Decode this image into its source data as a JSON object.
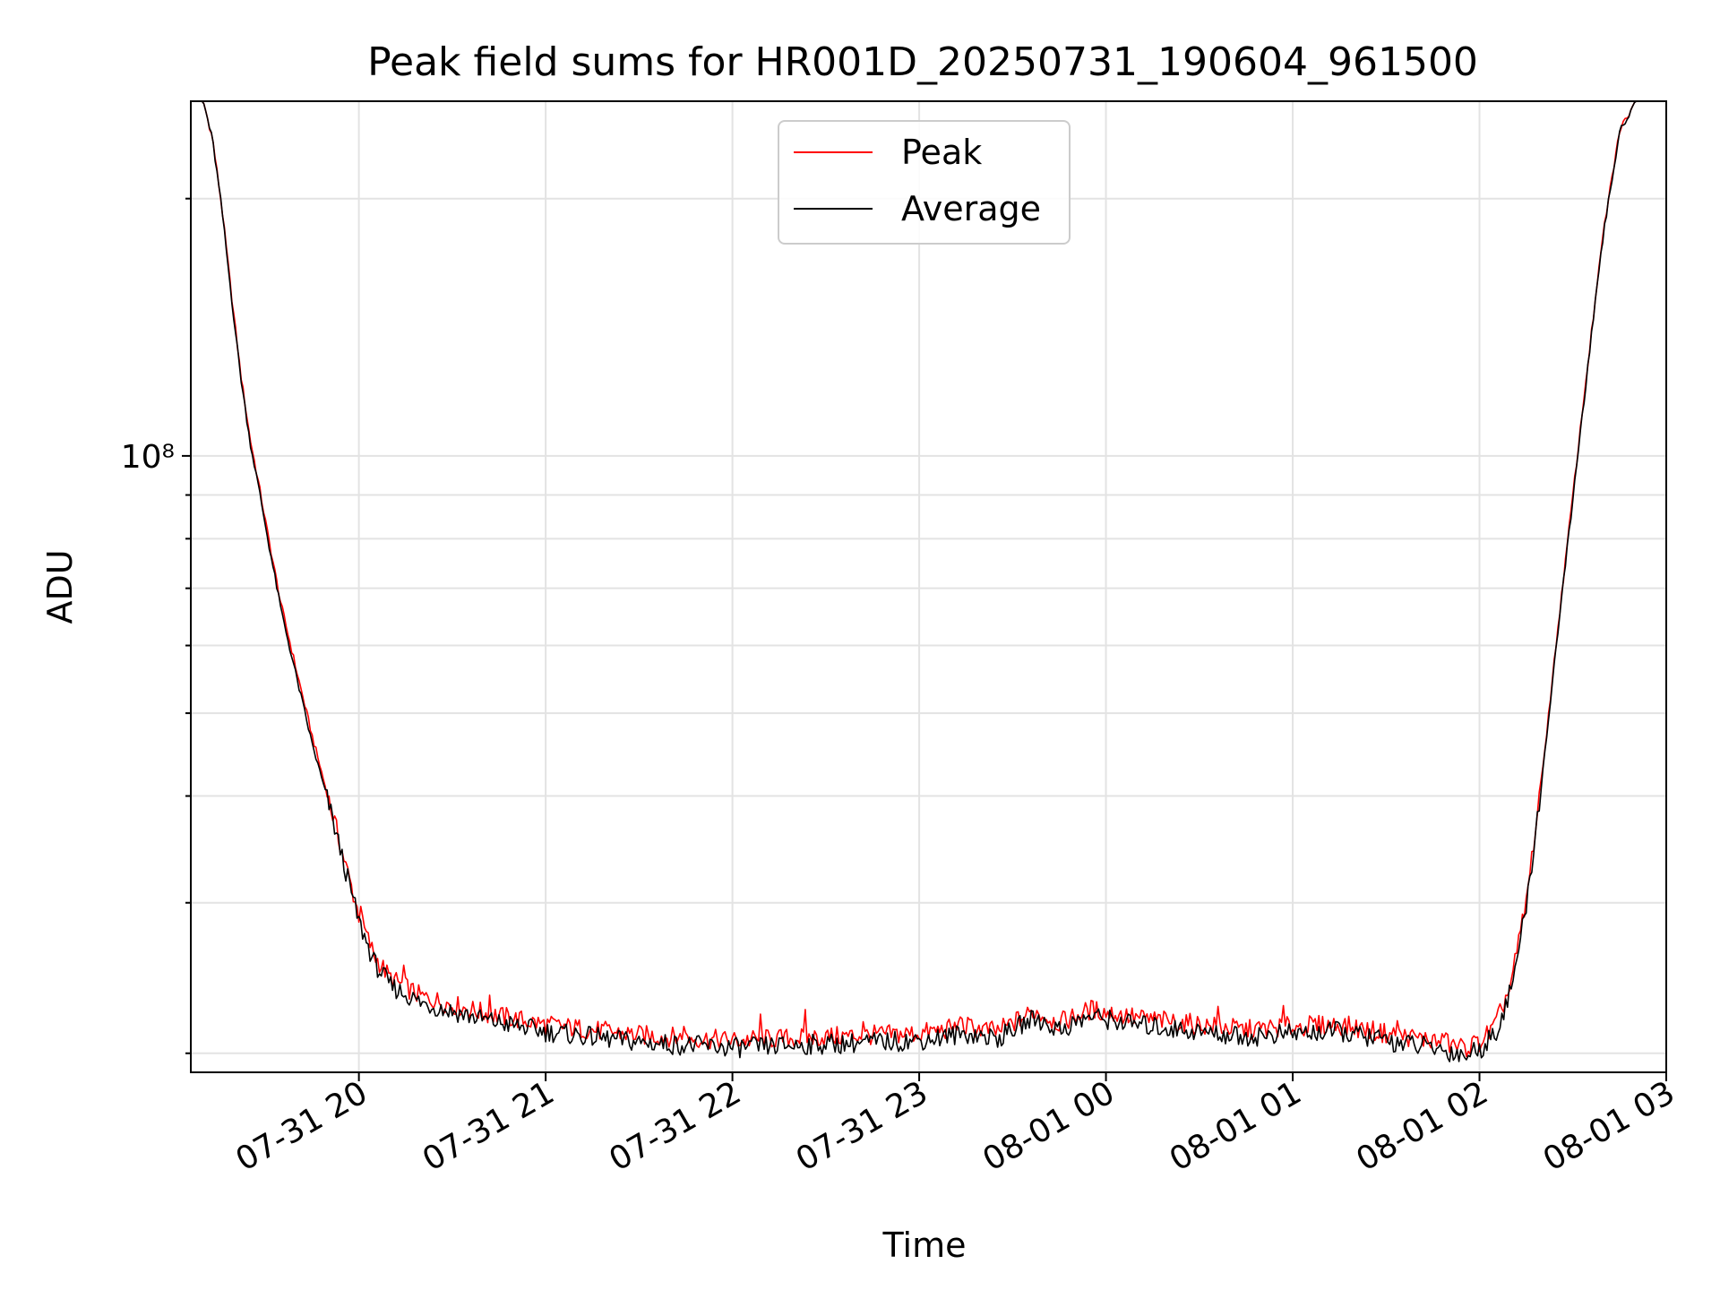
{
  "chart_data": {
    "type": "line",
    "title": "Peak field sums for HR001D_20250731_190604_961500",
    "xlabel": "Time",
    "ylabel": "ADU",
    "yscale": "log",
    "grid": true,
    "legend_position": "top-center",
    "x_tick_labels": [
      "07-31 20",
      "07-31 21",
      "07-31 22",
      "07-31 23",
      "08-01 00",
      "08-01 01",
      "08-01 02",
      "08-01 03"
    ],
    "x_ticks": [
      "2025-07-31 20:00",
      "2025-07-31 21:00",
      "2025-07-31 22:00",
      "2025-07-31 23:00",
      "2025-08-01 00:00",
      "2025-08-01 01:00",
      "2025-08-01 02:00",
      "2025-08-01 03:00"
    ],
    "xlim": [
      "2025-07-31 19:06",
      "2025-08-01 03:00"
    ],
    "y_tick_labels": [
      {
        "value": 100000000,
        "label": "10⁸"
      }
    ],
    "ylim": [
      19000000,
      260000000
    ],
    "series": [
      {
        "name": "Peak",
        "color": "#ff0000",
        "points": [
          [
            "2025-07-31 19:06",
            260000000
          ],
          [
            "2025-07-31 19:10",
            260000000
          ],
          [
            "2025-07-31 19:13",
            235000000
          ],
          [
            "2025-07-31 19:16",
            195000000
          ],
          [
            "2025-07-31 19:19",
            155000000
          ],
          [
            "2025-07-31 19:22",
            125000000
          ],
          [
            "2025-07-31 19:25",
            105000000
          ],
          [
            "2025-07-31 19:28",
            92000000
          ],
          [
            "2025-07-31 19:31",
            80000000
          ],
          [
            "2025-07-31 19:35",
            67000000
          ],
          [
            "2025-07-31 19:40",
            56000000
          ],
          [
            "2025-07-31 19:45",
            47000000
          ],
          [
            "2025-07-31 19:50",
            40000000
          ],
          [
            "2025-07-31 19:55",
            34000000
          ],
          [
            "2025-07-31 20:00",
            29000000
          ],
          [
            "2025-07-31 20:05",
            26000000
          ],
          [
            "2025-07-31 20:10",
            24500000
          ],
          [
            "2025-07-31 20:20",
            23300000
          ],
          [
            "2025-07-31 20:40",
            22300000
          ],
          [
            "2025-07-31 21:00",
            21600000
          ],
          [
            "2025-07-31 21:30",
            21000000
          ],
          [
            "2025-07-31 22:00",
            20700000
          ],
          [
            "2025-07-31 22:30",
            20900000
          ],
          [
            "2025-07-31 23:00",
            21100000
          ],
          [
            "2025-07-31 23:15",
            21500000
          ],
          [
            "2025-07-31 23:25",
            21200000
          ],
          [
            "2025-07-31 23:37",
            22400000
          ],
          [
            "2025-07-31 23:45",
            21700000
          ],
          [
            "2025-07-31 23:55",
            22500000
          ],
          [
            "2025-08-01 00:10",
            22000000
          ],
          [
            "2025-08-01 00:30",
            21600000
          ],
          [
            "2025-08-01 00:45",
            21300000
          ],
          [
            "2025-08-01 01:00",
            21500000
          ],
          [
            "2025-08-01 01:15",
            21600000
          ],
          [
            "2025-08-01 01:30",
            21100000
          ],
          [
            "2025-08-01 01:45",
            20700000
          ],
          [
            "2025-08-01 01:55",
            20300000
          ],
          [
            "2025-08-01 02:00",
            20600000
          ],
          [
            "2025-08-01 02:05",
            21500000
          ],
          [
            "2025-08-01 02:10",
            24000000
          ],
          [
            "2025-08-01 02:15",
            30000000
          ],
          [
            "2025-08-01 02:20",
            42000000
          ],
          [
            "2025-08-01 02:25",
            62000000
          ],
          [
            "2025-08-01 02:30",
            90000000
          ],
          [
            "2025-08-01 02:35",
            130000000
          ],
          [
            "2025-08-01 02:40",
            185000000
          ],
          [
            "2025-08-01 02:45",
            240000000
          ],
          [
            "2025-08-01 02:50",
            260000000
          ],
          [
            "2025-08-01 03:00",
            260000000
          ]
        ]
      },
      {
        "name": "Average",
        "color": "#000000",
        "points": [
          [
            "2025-07-31 19:06",
            260000000
          ],
          [
            "2025-07-31 19:10",
            260000000
          ],
          [
            "2025-07-31 19:13",
            234000000
          ],
          [
            "2025-07-31 19:16",
            194000000
          ],
          [
            "2025-07-31 19:19",
            154000000
          ],
          [
            "2025-07-31 19:22",
            124000000
          ],
          [
            "2025-07-31 19:25",
            104000000
          ],
          [
            "2025-07-31 19:28",
            91000000
          ],
          [
            "2025-07-31 19:31",
            79000000
          ],
          [
            "2025-07-31 19:35",
            66000000
          ],
          [
            "2025-07-31 19:40",
            55000000
          ],
          [
            "2025-07-31 19:45",
            46000000
          ],
          [
            "2025-07-31 19:50",
            39500000
          ],
          [
            "2025-07-31 19:55",
            33500000
          ],
          [
            "2025-07-31 20:00",
            28500000
          ],
          [
            "2025-07-31 20:05",
            25500000
          ],
          [
            "2025-07-31 20:10",
            24000000
          ],
          [
            "2025-07-31 20:20",
            22900000
          ],
          [
            "2025-07-31 20:40",
            21900000
          ],
          [
            "2025-07-31 21:00",
            21200000
          ],
          [
            "2025-07-31 21:30",
            20600000
          ],
          [
            "2025-07-31 22:00",
            20300000
          ],
          [
            "2025-07-31 22:30",
            20500000
          ],
          [
            "2025-07-31 23:00",
            20700000
          ],
          [
            "2025-07-31 23:15",
            21100000
          ],
          [
            "2025-07-31 23:25",
            20800000
          ],
          [
            "2025-07-31 23:37",
            22000000
          ],
          [
            "2025-07-31 23:45",
            21300000
          ],
          [
            "2025-07-31 23:55",
            22100000
          ],
          [
            "2025-08-01 00:10",
            21600000
          ],
          [
            "2025-08-01 00:30",
            21200000
          ],
          [
            "2025-08-01 00:45",
            20900000
          ],
          [
            "2025-08-01 01:00",
            21100000
          ],
          [
            "2025-08-01 01:15",
            21200000
          ],
          [
            "2025-08-01 01:30",
            20700000
          ],
          [
            "2025-08-01 01:45",
            20300000
          ],
          [
            "2025-08-01 01:55",
            19900000
          ],
          [
            "2025-08-01 02:00",
            20200000
          ],
          [
            "2025-08-01 02:05",
            21100000
          ],
          [
            "2025-08-01 02:10",
            23600000
          ],
          [
            "2025-08-01 02:15",
            29500000
          ],
          [
            "2025-08-01 02:20",
            41500000
          ],
          [
            "2025-08-01 02:25",
            61500000
          ],
          [
            "2025-08-01 02:30",
            89000000
          ],
          [
            "2025-08-01 02:35",
            129000000
          ],
          [
            "2025-08-01 02:40",
            184000000
          ],
          [
            "2025-08-01 02:45",
            239000000
          ],
          [
            "2025-08-01 02:50",
            260000000
          ],
          [
            "2025-08-01 03:00",
            260000000
          ]
        ]
      }
    ]
  }
}
